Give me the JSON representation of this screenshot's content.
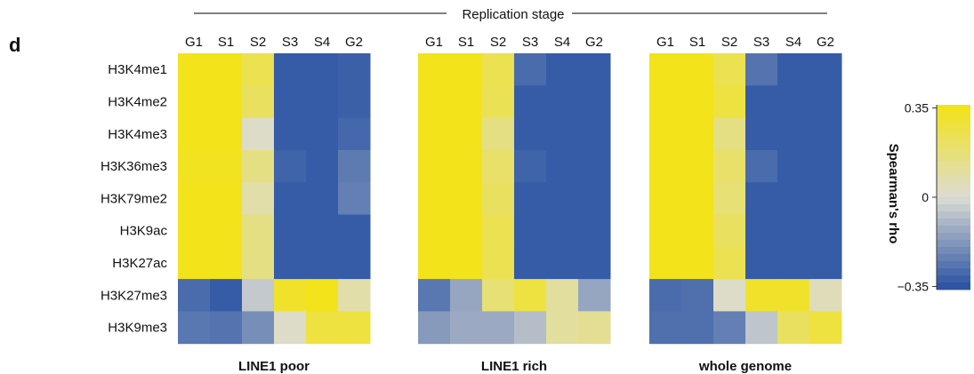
{
  "panel_letter": "d",
  "header": "Replication stage",
  "colorbar": {
    "label": "Spearman's rho",
    "ticks": [
      {
        "value": 0.35,
        "label": "0.35"
      },
      {
        "value": 0,
        "label": "0"
      },
      {
        "value": -0.35,
        "label": "−0.35"
      }
    ],
    "colors": {
      "high": "#f2e31b",
      "mid": "#dcdcd3",
      "low": "#2c54a4"
    }
  },
  "chart_data": [
    {
      "type": "heatmap",
      "title": "LINE1 poor",
      "x": [
        "G1",
        "S1",
        "S2",
        "S3",
        "S4",
        "G2"
      ],
      "y": [
        "H3K4me1",
        "H3K4me2",
        "H3K4me3",
        "H3K36me3",
        "H3K79me2",
        "H3K9ac",
        "H3K27ac",
        "H3K27me3",
        "H3K9me3"
      ],
      "vlim": [
        -0.35,
        0.35
      ],
      "values": [
        [
          0.35,
          0.35,
          0.25,
          -0.33,
          -0.33,
          -0.32
        ],
        [
          0.35,
          0.35,
          0.22,
          -0.33,
          -0.33,
          -0.32
        ],
        [
          0.35,
          0.35,
          0.02,
          -0.33,
          -0.33,
          -0.3
        ],
        [
          0.34,
          0.34,
          0.15,
          -0.31,
          -0.33,
          -0.25
        ],
        [
          0.35,
          0.35,
          0.08,
          -0.33,
          -0.33,
          -0.24
        ],
        [
          0.35,
          0.35,
          0.15,
          -0.33,
          -0.33,
          -0.33
        ],
        [
          0.35,
          0.35,
          0.15,
          -0.33,
          -0.33,
          -0.33
        ],
        [
          -0.29,
          -0.33,
          -0.05,
          0.32,
          0.35,
          0.08
        ],
        [
          -0.26,
          -0.27,
          -0.2,
          0.02,
          0.28,
          0.28
        ]
      ]
    },
    {
      "type": "heatmap",
      "title": "LINE1 rich",
      "x": [
        "G1",
        "S1",
        "S2",
        "S3",
        "S4",
        "G2"
      ],
      "y": [
        "H3K4me1",
        "H3K4me2",
        "H3K4me3",
        "H3K36me3",
        "H3K79me2",
        "H3K9ac",
        "H3K27ac",
        "H3K27me3",
        "H3K9me3"
      ],
      "vlim": [
        -0.35,
        0.35
      ],
      "values": [
        [
          0.35,
          0.35,
          0.25,
          -0.29,
          -0.33,
          -0.33
        ],
        [
          0.35,
          0.35,
          0.24,
          -0.33,
          -0.33,
          -0.33
        ],
        [
          0.35,
          0.35,
          0.15,
          -0.33,
          -0.33,
          -0.33
        ],
        [
          0.35,
          0.35,
          0.2,
          -0.31,
          -0.33,
          -0.33
        ],
        [
          0.35,
          0.35,
          0.22,
          -0.33,
          -0.33,
          -0.33
        ],
        [
          0.35,
          0.35,
          0.25,
          -0.33,
          -0.33,
          -0.33
        ],
        [
          0.35,
          0.35,
          0.25,
          -0.33,
          -0.33,
          -0.33
        ],
        [
          -0.26,
          -0.14,
          0.18,
          0.28,
          0.1,
          -0.14
        ],
        [
          -0.17,
          -0.13,
          -0.13,
          -0.08,
          0.1,
          0.12
        ]
      ]
    },
    {
      "type": "heatmap",
      "title": "whole genome",
      "x": [
        "G1",
        "S1",
        "S2",
        "S3",
        "S4",
        "G2"
      ],
      "y": [
        "H3K4me1",
        "H3K4me2",
        "H3K4me3",
        "H3K36me3",
        "H3K79me2",
        "H3K9ac",
        "H3K27ac",
        "H3K27me3",
        "H3K9me3"
      ],
      "vlim": [
        -0.35,
        0.35
      ],
      "values": [
        [
          0.35,
          0.35,
          0.25,
          -0.27,
          -0.33,
          -0.33
        ],
        [
          0.35,
          0.35,
          0.28,
          -0.33,
          -0.33,
          -0.33
        ],
        [
          0.35,
          0.35,
          0.15,
          -0.33,
          -0.33,
          -0.33
        ],
        [
          0.35,
          0.35,
          0.2,
          -0.29,
          -0.33,
          -0.33
        ],
        [
          0.35,
          0.35,
          0.18,
          -0.33,
          -0.33,
          -0.33
        ],
        [
          0.35,
          0.35,
          0.22,
          -0.33,
          -0.33,
          -0.33
        ],
        [
          0.35,
          0.35,
          0.25,
          -0.33,
          -0.33,
          -0.33
        ],
        [
          -0.29,
          -0.28,
          0.02,
          0.32,
          0.32,
          0.05
        ],
        [
          -0.28,
          -0.28,
          -0.24,
          -0.06,
          0.22,
          0.28
        ]
      ]
    }
  ]
}
